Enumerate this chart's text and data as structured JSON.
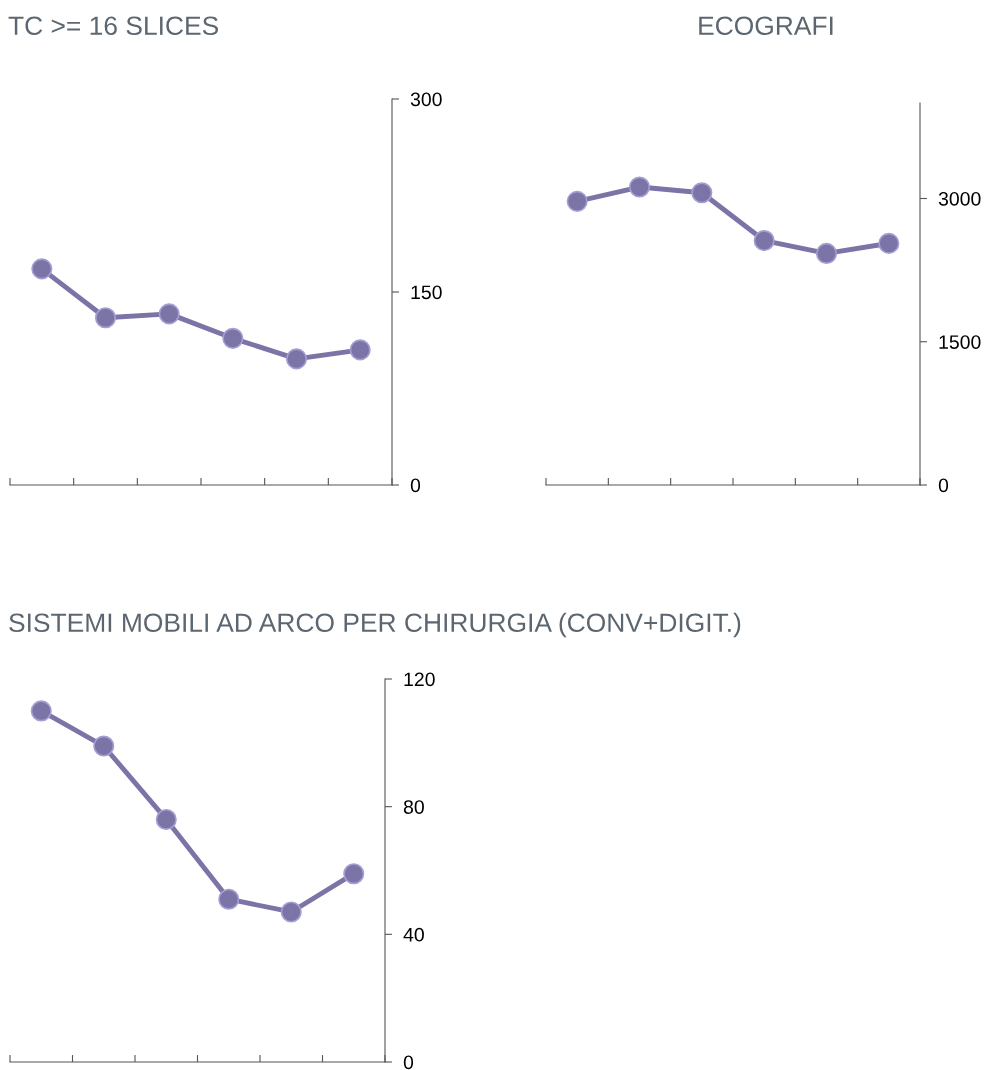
{
  "chart_data": [
    {
      "type": "line",
      "title": "TC >= 16 SLICES",
      "categories": [
        null,
        null,
        null,
        null,
        null,
        null
      ],
      "series": [
        {
          "color": "#7b74a6",
          "values": [
            168,
            130,
            133,
            114,
            98,
            105
          ]
        }
      ],
      "ylim": [
        0,
        300
      ],
      "yticks": [
        0,
        150,
        300
      ],
      "tick_labels": "y",
      "marker": "circle",
      "line_style": "solid",
      "grid": false,
      "legend": false
    },
    {
      "type": "line",
      "title": "ECOGRAFI",
      "categories": [
        null,
        null,
        null,
        null,
        null,
        null
      ],
      "series": [
        {
          "color": "#7b74a6",
          "values": [
            2970,
            3120,
            3060,
            2560,
            2425,
            2530
          ]
        }
      ],
      "ylim": [
        0,
        4000
      ],
      "yticks": [
        0,
        1500,
        3000
      ],
      "tick_labels": "y",
      "marker": "circle",
      "line_style": "solid",
      "grid": false,
      "legend": false
    },
    {
      "type": "line",
      "title": "SISTEMI MOBILI AD ARCO PER CHIRURGIA (CONV+DIGIT.)",
      "categories": [
        null,
        null,
        null,
        null,
        null,
        null
      ],
      "series": [
        {
          "color": "#7b74a6",
          "values": [
            110,
            99,
            76,
            51,
            47,
            59
          ]
        }
      ],
      "ylim": [
        0,
        120
      ],
      "yticks": [
        0,
        40,
        80,
        120
      ],
      "tick_labels": "y",
      "marker": "circle",
      "line_style": "solid",
      "grid": false,
      "legend": false
    }
  ]
}
